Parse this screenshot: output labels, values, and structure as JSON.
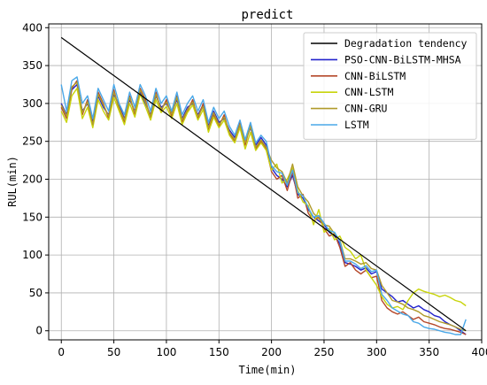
{
  "chart_data": {
    "type": "line",
    "title": "predict",
    "xlabel": "Time(min)",
    "ylabel": "RUL(min)",
    "xlim": [
      -12,
      400
    ],
    "ylim": [
      -12,
      405
    ],
    "xticks": [
      0,
      50,
      100,
      150,
      200,
      250,
      300,
      350,
      400
    ],
    "yticks": [
      0,
      50,
      100,
      150,
      200,
      250,
      300,
      350,
      400
    ],
    "grid": true,
    "legend_position": "top-right",
    "series": [
      {
        "name": "Degradation tendency",
        "color": "#000000",
        "x": [
          0,
          385
        ],
        "y": [
          387,
          0
        ]
      },
      {
        "name": "PSO-CNN-BiLSTM-MHSA",
        "color": "#2222cc",
        "x": [
          0,
          5,
          10,
          15,
          20,
          25,
          30,
          35,
          40,
          45,
          50,
          55,
          60,
          65,
          70,
          75,
          80,
          85,
          90,
          95,
          100,
          105,
          110,
          115,
          120,
          125,
          130,
          135,
          140,
          145,
          150,
          155,
          160,
          165,
          170,
          175,
          180,
          185,
          190,
          195,
          200,
          205,
          210,
          215,
          220,
          225,
          230,
          235,
          240,
          245,
          250,
          255,
          260,
          265,
          270,
          275,
          280,
          285,
          290,
          295,
          300,
          305,
          310,
          315,
          320,
          325,
          330,
          335,
          340,
          345,
          350,
          355,
          360,
          365,
          370,
          375,
          380,
          385
        ],
        "y": [
          300,
          285,
          318,
          325,
          290,
          300,
          275,
          310,
          295,
          285,
          312,
          298,
          280,
          305,
          290,
          315,
          300,
          285,
          310,
          295,
          300,
          288,
          305,
          280,
          295,
          300,
          285,
          298,
          270,
          290,
          275,
          280,
          265,
          255,
          270,
          250,
          268,
          245,
          255,
          245,
          215,
          205,
          200,
          190,
          205,
          180,
          175,
          160,
          150,
          145,
          140,
          130,
          125,
          115,
          90,
          88,
          85,
          80,
          83,
          75,
          78,
          55,
          50,
          45,
          38,
          40,
          35,
          30,
          33,
          28,
          25,
          20,
          18,
          12,
          8,
          5,
          0,
          -5
        ]
      },
      {
        "name": "CNN-BiLSTM",
        "color": "#b5482a",
        "x": [
          0,
          5,
          10,
          15,
          20,
          25,
          30,
          35,
          40,
          45,
          50,
          55,
          60,
          65,
          70,
          75,
          80,
          85,
          90,
          95,
          100,
          105,
          110,
          115,
          120,
          125,
          130,
          135,
          140,
          145,
          150,
          155,
          160,
          165,
          170,
          175,
          180,
          185,
          190,
          195,
          200,
          205,
          210,
          215,
          220,
          225,
          230,
          235,
          240,
          245,
          250,
          255,
          260,
          265,
          270,
          275,
          280,
          285,
          290,
          295,
          300,
          305,
          310,
          315,
          320,
          325,
          330,
          335,
          340,
          345,
          350,
          355,
          360,
          365,
          370,
          375,
          380,
          385
        ],
        "y": [
          295,
          280,
          320,
          330,
          285,
          305,
          270,
          315,
          300,
          280,
          318,
          292,
          275,
          310,
          285,
          320,
          305,
          280,
          315,
          290,
          305,
          283,
          310,
          275,
          290,
          305,
          280,
          300,
          265,
          285,
          270,
          285,
          260,
          250,
          275,
          245,
          272,
          240,
          250,
          240,
          210,
          200,
          205,
          185,
          210,
          175,
          180,
          155,
          145,
          150,
          135,
          125,
          128,
          110,
          85,
          90,
          80,
          75,
          80,
          70,
          72,
          40,
          30,
          25,
          22,
          25,
          20,
          15,
          18,
          12,
          10,
          8,
          5,
          3,
          2,
          0,
          -2,
          -5
        ]
      },
      {
        "name": "CNN-LSTM",
        "color": "#c8d40a",
        "x": [
          0,
          5,
          10,
          15,
          20,
          25,
          30,
          35,
          40,
          45,
          50,
          55,
          60,
          65,
          70,
          75,
          80,
          85,
          90,
          95,
          100,
          105,
          110,
          115,
          120,
          125,
          130,
          135,
          140,
          145,
          150,
          155,
          160,
          165,
          170,
          175,
          180,
          185,
          190,
          195,
          200,
          205,
          210,
          215,
          220,
          225,
          230,
          235,
          240,
          245,
          250,
          255,
          260,
          265,
          270,
          275,
          280,
          285,
          290,
          295,
          300,
          305,
          310,
          315,
          320,
          325,
          330,
          335,
          340,
          345,
          350,
          355,
          360,
          365,
          370,
          375,
          380,
          385
        ],
        "y": [
          290,
          275,
          310,
          320,
          280,
          295,
          268,
          305,
          290,
          278,
          308,
          290,
          272,
          300,
          282,
          312,
          296,
          278,
          305,
          288,
          296,
          280,
          300,
          272,
          288,
          298,
          278,
          292,
          262,
          282,
          268,
          278,
          258,
          248,
          268,
          240,
          262,
          238,
          248,
          238,
          212,
          220,
          195,
          200,
          215,
          185,
          170,
          165,
          140,
          160,
          130,
          135,
          120,
          125,
          110,
          105,
          95,
          100,
          80,
          70,
          60,
          45,
          35,
          30,
          32,
          28,
          40,
          50,
          55,
          52,
          50,
          48,
          45,
          47,
          44,
          40,
          38,
          33
        ]
      },
      {
        "name": "CNN-GRU",
        "color": "#b09a2a",
        "x": [
          0,
          5,
          10,
          15,
          20,
          25,
          30,
          35,
          40,
          45,
          50,
          55,
          60,
          65,
          70,
          75,
          80,
          85,
          90,
          95,
          100,
          105,
          110,
          115,
          120,
          125,
          130,
          135,
          140,
          145,
          150,
          155,
          160,
          165,
          170,
          175,
          180,
          185,
          190,
          195,
          200,
          205,
          210,
          215,
          220,
          225,
          230,
          235,
          240,
          245,
          250,
          255,
          260,
          265,
          270,
          275,
          280,
          285,
          290,
          295,
          300,
          305,
          310,
          315,
          320,
          325,
          330,
          335,
          340,
          345,
          350,
          355,
          360,
          365,
          370,
          375,
          380,
          385
        ],
        "y": [
          298,
          283,
          322,
          328,
          288,
          302,
          272,
          312,
          298,
          283,
          315,
          295,
          278,
          308,
          288,
          318,
          302,
          283,
          312,
          292,
          302,
          286,
          308,
          278,
          292,
          302,
          283,
          296,
          268,
          288,
          272,
          282,
          262,
          252,
          272,
          248,
          270,
          242,
          252,
          242,
          225,
          215,
          210,
          195,
          220,
          190,
          178,
          170,
          155,
          148,
          140,
          138,
          128,
          120,
          95,
          95,
          92,
          88,
          90,
          82,
          80,
          60,
          50,
          40,
          38,
          35,
          30,
          28,
          25,
          20,
          18,
          15,
          12,
          10,
          8,
          5,
          2,
          0
        ]
      },
      {
        "name": "LSTM",
        "color": "#4aa8e8",
        "x": [
          0,
          5,
          10,
          15,
          20,
          25,
          30,
          35,
          40,
          45,
          50,
          55,
          60,
          65,
          70,
          75,
          80,
          85,
          90,
          95,
          100,
          105,
          110,
          115,
          120,
          125,
          130,
          135,
          140,
          145,
          150,
          155,
          160,
          165,
          170,
          175,
          180,
          185,
          190,
          195,
          200,
          205,
          210,
          215,
          220,
          225,
          230,
          235,
          240,
          245,
          250,
          255,
          260,
          265,
          270,
          275,
          280,
          285,
          290,
          295,
          300,
          305,
          310,
          315,
          320,
          325,
          330,
          335,
          340,
          345,
          350,
          355,
          360,
          365,
          370,
          375,
          380,
          385
        ],
        "y": [
          325,
          290,
          330,
          335,
          300,
          310,
          280,
          320,
          305,
          290,
          325,
          300,
          285,
          315,
          295,
          325,
          310,
          290,
          320,
          300,
          310,
          290,
          315,
          285,
          300,
          310,
          290,
          305,
          275,
          295,
          280,
          290,
          270,
          258,
          278,
          252,
          275,
          248,
          258,
          250,
          218,
          210,
          208,
          192,
          212,
          182,
          178,
          162,
          150,
          152,
          142,
          132,
          130,
          118,
          92,
          92,
          88,
          82,
          86,
          78,
          80,
          48,
          40,
          30,
          26,
          22,
          20,
          12,
          10,
          5,
          3,
          2,
          0,
          -2,
          -3,
          -5,
          -5,
          15
        ]
      }
    ]
  }
}
